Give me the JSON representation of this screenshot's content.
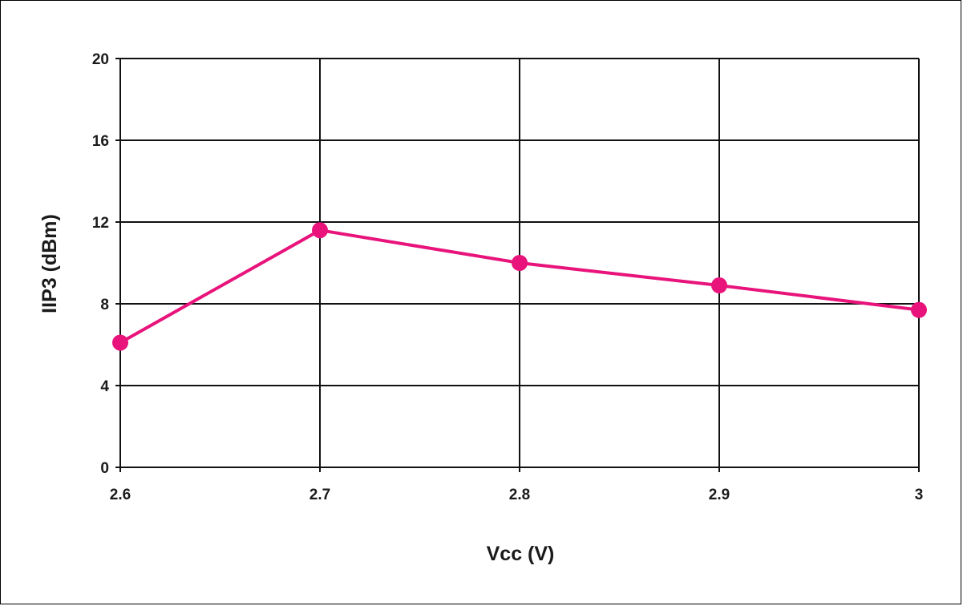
{
  "chart_data": {
    "type": "line",
    "title": "",
    "xlabel": "Vcc (V)",
    "ylabel": "IIP3 (dBm)",
    "x": [
      2.6,
      2.7,
      2.8,
      2.9,
      3
    ],
    "xticks": [
      "2.6",
      "2.7",
      "2.8",
      "2.9",
      "3"
    ],
    "yticks": [
      "0",
      "4",
      "8",
      "12",
      "16",
      "20"
    ],
    "xlim": [
      2.6,
      3.0
    ],
    "ylim": [
      0,
      20
    ],
    "grid": true,
    "series": [
      {
        "values": [
          6.1,
          11.6,
          10.0,
          8.9,
          7.7
        ],
        "color": "#e8137b"
      }
    ]
  }
}
